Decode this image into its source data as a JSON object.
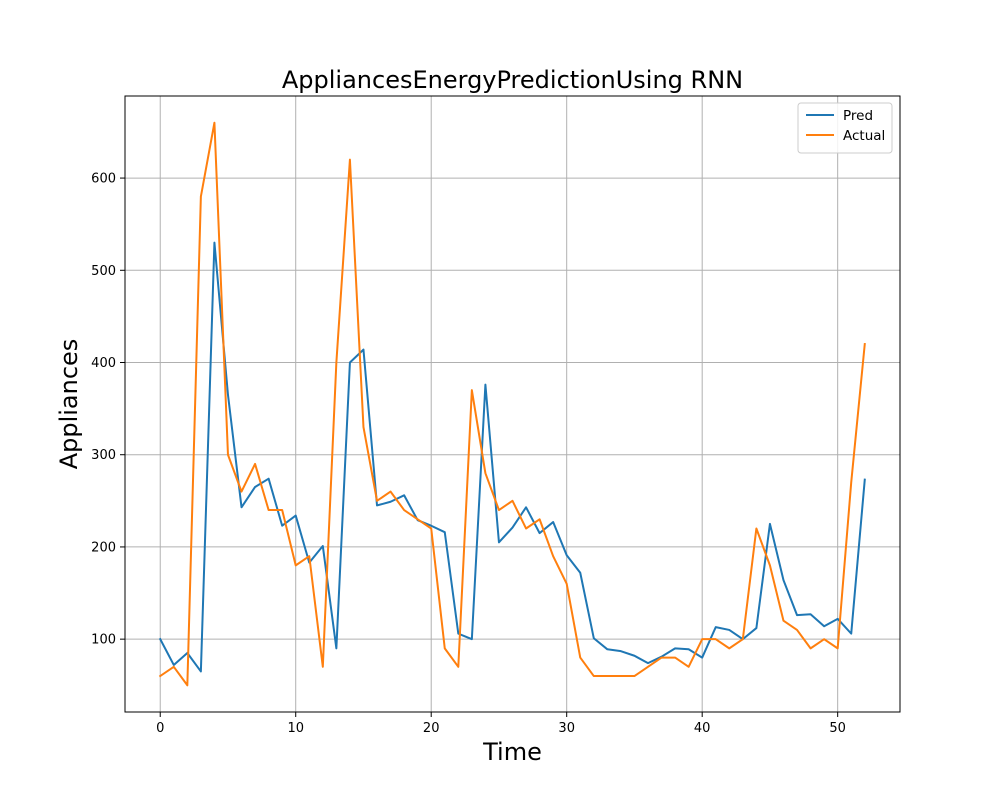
{
  "chart_data": {
    "type": "line",
    "title": "AppliancesEnergyPredictionUsing RNN",
    "xlabel": "Time",
    "ylabel": "Appliances",
    "xlim": [
      -2.6,
      54.6
    ],
    "ylim": [
      21,
      689
    ],
    "xticks": [
      0,
      10,
      20,
      30,
      40,
      50
    ],
    "yticks": [
      100,
      200,
      300,
      400,
      500,
      600
    ],
    "grid": true,
    "legend_position": "top-right",
    "x": [
      0,
      1,
      2,
      3,
      4,
      5,
      6,
      7,
      8,
      9,
      10,
      11,
      12,
      13,
      14,
      15,
      16,
      17,
      18,
      19,
      20,
      21,
      22,
      23,
      24,
      25,
      26,
      27,
      28,
      29,
      30,
      31,
      32,
      33,
      34,
      35,
      36,
      37,
      38,
      39,
      40,
      41,
      42,
      43,
      44,
      45,
      46,
      47,
      48,
      49,
      50,
      51,
      52
    ],
    "series": [
      {
        "name": "Pred",
        "color": "#1f77b4",
        "values": [
          100,
          72,
          85,
          65,
          530,
          365,
          243,
          265,
          274,
          223,
          234,
          183,
          201,
          90,
          400,
          414,
          245,
          249,
          256,
          229,
          223,
          216,
          106,
          100,
          376,
          205,
          221,
          243,
          215,
          227,
          191,
          172,
          101,
          89,
          87,
          82,
          74,
          81,
          90,
          89,
          80,
          113,
          110,
          100,
          112,
          225,
          164,
          126,
          127,
          114,
          122,
          106,
          273
        ]
      },
      {
        "name": "Actual",
        "color": "#ff7f0e",
        "values": [
          60,
          70,
          50,
          580,
          660,
          300,
          260,
          290,
          240,
          240,
          180,
          190,
          70,
          400,
          620,
          330,
          250,
          260,
          240,
          230,
          220,
          90,
          70,
          370,
          280,
          240,
          250,
          220,
          230,
          190,
          160,
          80,
          60,
          60,
          60,
          60,
          70,
          80,
          80,
          70,
          100,
          100,
          90,
          100,
          220,
          180,
          120,
          110,
          90,
          100,
          90,
          270,
          420
        ]
      }
    ]
  }
}
